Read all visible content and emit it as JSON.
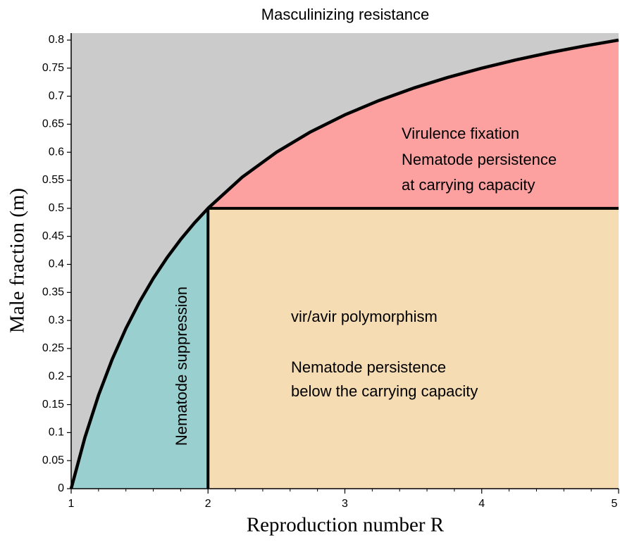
{
  "chart_data": {
    "type": "region",
    "title": "Masculinizing resistance",
    "xlabel": "Reproduction number R",
    "ylabel": "Male fraction (m)",
    "xlim": [
      1,
      5
    ],
    "ylim": [
      0,
      0.8125
    ],
    "xticks": [
      1,
      2,
      3,
      4,
      5
    ],
    "x_minor_ticks": [
      1.2,
      1.4,
      1.6,
      1.8,
      2.2,
      2.4,
      2.6,
      2.8,
      3.2,
      3.4,
      3.6,
      3.8,
      4.2,
      4.4,
      4.6,
      4.8
    ],
    "yticks": [
      0,
      0.05,
      0.1,
      0.15,
      0.2,
      0.25,
      0.3,
      0.35,
      0.4,
      0.45,
      0.5,
      0.55,
      0.6,
      0.65,
      0.7,
      0.75,
      0.8
    ],
    "curve": {
      "color": "#000000",
      "x": [
        1,
        1.1,
        1.2,
        1.3,
        1.4,
        1.5,
        1.6,
        1.7,
        1.8,
        1.9,
        2,
        2.25,
        2.5,
        2.75,
        3,
        3.25,
        3.5,
        3.75,
        4,
        4.25,
        4.5,
        4.75,
        5
      ],
      "values": [
        0,
        0.0909,
        0.1667,
        0.2308,
        0.2857,
        0.3333,
        0.375,
        0.4118,
        0.4444,
        0.4737,
        0.5,
        0.5556,
        0.6,
        0.6364,
        0.6667,
        0.6923,
        0.7143,
        0.7333,
        0.75,
        0.7647,
        0.7778,
        0.7895,
        0.8
      ]
    },
    "threshold_R": 2,
    "threshold_m": 0.5,
    "regions": [
      {
        "color": "#cbcbcb"
      },
      {
        "color": "#9acfcf",
        "label": [
          "Nematode suppression"
        ]
      },
      {
        "color": "#fca0a0",
        "label": [
          "Virulence fixation",
          "Nematode persistence",
          "at carrying capacity"
        ]
      },
      {
        "color": "#f5dcb3",
        "label": [
          "vir/avir polymorphism",
          "Nematode persistence",
          "below the carrying capacity"
        ]
      }
    ]
  }
}
